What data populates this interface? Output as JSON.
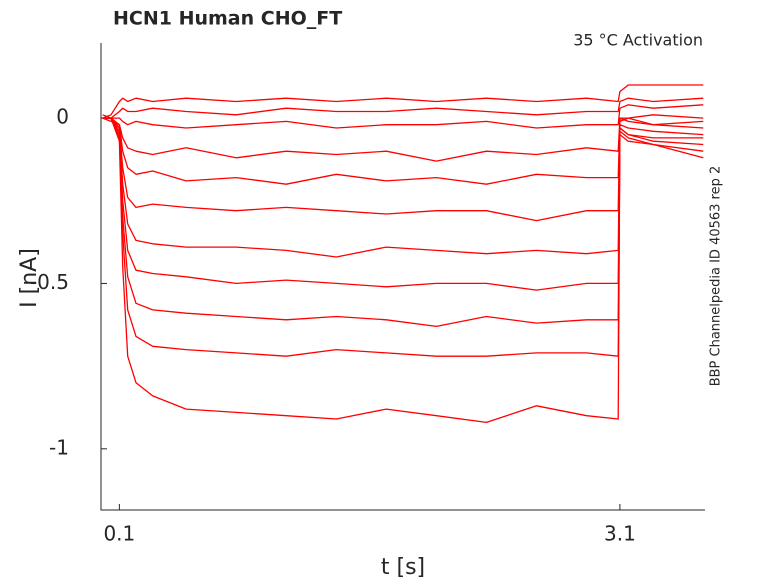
{
  "chart_data": {
    "type": "line",
    "title": "HCN1  Human  CHO_FT",
    "subtitle": "35 °C  Activation",
    "side_note": "BBP Channelpedia ID 40563 rep 2",
    "xlabel": "t [s]",
    "ylabel": "I [nA]",
    "xlim": [
      -0.01,
      3.61
    ],
    "ylim": [
      -1.185,
      0.227
    ],
    "xticks": [
      0.1,
      3.1
    ],
    "yticks": [
      0,
      -0.5,
      -1
    ],
    "grid": false,
    "x": [
      0,
      0.05,
      0.1,
      0.12,
      0.15,
      0.2,
      0.3,
      0.5,
      0.8,
      1.1,
      1.4,
      1.7,
      2.0,
      2.3,
      2.6,
      2.9,
      3.09,
      3.1,
      3.15,
      3.3,
      3.6
    ],
    "series": [
      {
        "color": "#ff0000",
        "values": [
          0,
          0.01,
          0.05,
          0.06,
          0.05,
          0.06,
          0.05,
          0.06,
          0.05,
          0.06,
          0.05,
          0.06,
          0.05,
          0.06,
          0.05,
          0.06,
          0.05,
          0.08,
          0.1,
          0.1,
          0.1
        ]
      },
      {
        "color": "#ff0000",
        "values": [
          0,
          0,
          0.02,
          0.03,
          0.02,
          0.02,
          0.03,
          0.02,
          0.01,
          0.03,
          0.02,
          0.02,
          0.03,
          0.02,
          0.01,
          0.02,
          0.02,
          0.05,
          0.06,
          0.05,
          0.06
        ]
      },
      {
        "color": "#ff0000",
        "values": [
          0.01,
          0,
          0,
          -0.01,
          -0.02,
          -0.01,
          -0.02,
          -0.03,
          -0.02,
          -0.01,
          -0.03,
          -0.02,
          -0.02,
          -0.01,
          -0.03,
          -0.02,
          -0.02,
          0.03,
          0.04,
          0.03,
          0.04
        ]
      },
      {
        "color": "#ff0000",
        "values": [
          0,
          -0.01,
          -0.02,
          -0.06,
          -0.09,
          -0.1,
          -0.11,
          -0.09,
          -0.12,
          -0.1,
          -0.11,
          -0.1,
          -0.13,
          -0.1,
          -0.11,
          -0.09,
          -0.1,
          0,
          0,
          0.01,
          0
        ]
      },
      {
        "color": "#ff0000",
        "values": [
          0,
          0,
          -0.02,
          -0.1,
          -0.15,
          -0.17,
          -0.16,
          -0.19,
          -0.18,
          -0.2,
          -0.17,
          -0.19,
          -0.18,
          -0.2,
          -0.17,
          -0.18,
          -0.18,
          -0.01,
          0,
          -0.02,
          -0.01
        ]
      },
      {
        "color": "#ff0000",
        "values": [
          0,
          0,
          -0.03,
          -0.15,
          -0.24,
          -0.27,
          -0.26,
          -0.27,
          -0.28,
          -0.27,
          -0.28,
          -0.29,
          -0.28,
          -0.28,
          -0.31,
          -0.28,
          -0.28,
          0,
          -0.01,
          -0.02,
          -0.03
        ]
      },
      {
        "color": "#ff0000",
        "values": [
          0,
          0,
          -0.03,
          -0.2,
          -0.32,
          -0.37,
          -0.38,
          -0.39,
          -0.39,
          -0.4,
          -0.42,
          -0.39,
          -0.4,
          -0.41,
          -0.4,
          -0.41,
          -0.4,
          -0.02,
          -0.03,
          -0.04,
          -0.05
        ]
      },
      {
        "color": "#ff0000",
        "values": [
          0,
          0,
          -0.04,
          -0.25,
          -0.4,
          -0.46,
          -0.47,
          -0.48,
          -0.5,
          -0.49,
          -0.5,
          -0.51,
          -0.5,
          -0.5,
          -0.52,
          -0.5,
          -0.5,
          -0.03,
          -0.05,
          -0.06,
          -0.06
        ]
      },
      {
        "color": "#ff0000",
        "values": [
          0,
          0,
          -0.05,
          -0.3,
          -0.48,
          -0.56,
          -0.58,
          -0.59,
          -0.6,
          -0.61,
          -0.6,
          -0.61,
          -0.63,
          -0.6,
          -0.62,
          -0.61,
          -0.61,
          -0.03,
          -0.05,
          -0.07,
          -0.08
        ]
      },
      {
        "color": "#ff0000",
        "values": [
          0,
          0,
          -0.06,
          -0.35,
          -0.58,
          -0.66,
          -0.69,
          -0.7,
          -0.71,
          -0.72,
          -0.7,
          -0.71,
          -0.72,
          -0.72,
          -0.71,
          -0.71,
          -0.72,
          -0.04,
          -0.06,
          -0.08,
          -0.1
        ]
      },
      {
        "color": "#ff0000",
        "values": [
          0,
          0,
          -0.07,
          -0.45,
          -0.72,
          -0.8,
          -0.84,
          -0.88,
          -0.89,
          -0.9,
          -0.91,
          -0.88,
          -0.9,
          -0.92,
          -0.87,
          -0.9,
          -0.91,
          -0.05,
          -0.07,
          -0.08,
          -0.12
        ]
      }
    ]
  }
}
